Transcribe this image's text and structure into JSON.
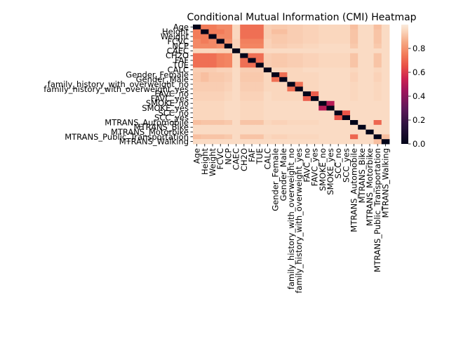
{
  "chart_data": {
    "type": "heatmap",
    "title": "Conditional Mutual Information (CMI) Heatmap",
    "xlabel": "",
    "ylabel": "",
    "labels": [
      "Age",
      "Height",
      "Weight",
      "FCVC",
      "NCP",
      "CAEC",
      "CH2O",
      "FAF",
      "TUE",
      "CALC",
      "Gender_Female",
      "Gender_Male",
      "family_history_with_overweight_no",
      "family_history_with_overweight_yes",
      "FAVC_no",
      "FAVC_yes",
      "SMOKE_no",
      "SMOKE_yes",
      "SCC_no",
      "SCC_yes",
      "MTRANS_Automobile",
      "MTRANS_Bike",
      "MTRANS_Motorbike",
      "MTRANS_Public_Transportation",
      "MTRANS_Walking"
    ],
    "values": [
      [
        0.0,
        0.75,
        0.75,
        0.78,
        0.78,
        0.95,
        0.72,
        0.72,
        0.72,
        0.93,
        0.92,
        0.92,
        0.93,
        0.93,
        0.94,
        0.94,
        0.95,
        0.95,
        0.95,
        0.95,
        0.9,
        0.96,
        0.96,
        0.9,
        0.96
      ],
      [
        0.75,
        0.0,
        0.75,
        0.75,
        0.78,
        0.95,
        0.72,
        0.72,
        0.72,
        0.93,
        0.9,
        0.9,
        0.93,
        0.93,
        0.94,
        0.94,
        0.95,
        0.95,
        0.95,
        0.95,
        0.91,
        0.96,
        0.96,
        0.91,
        0.96
      ],
      [
        0.75,
        0.75,
        0.0,
        0.78,
        0.78,
        0.95,
        0.72,
        0.72,
        0.72,
        0.93,
        0.92,
        0.92,
        0.93,
        0.93,
        0.94,
        0.94,
        0.95,
        0.95,
        0.95,
        0.95,
        0.91,
        0.96,
        0.96,
        0.91,
        0.96
      ],
      [
        0.78,
        0.75,
        0.78,
        0.0,
        0.8,
        0.94,
        0.76,
        0.76,
        0.76,
        0.94,
        0.92,
        0.92,
        0.93,
        0.93,
        0.94,
        0.94,
        0.95,
        0.95,
        0.95,
        0.95,
        0.91,
        0.96,
        0.96,
        0.91,
        0.96
      ],
      [
        0.78,
        0.78,
        0.78,
        0.8,
        0.0,
        0.94,
        0.77,
        0.77,
        0.77,
        0.94,
        0.93,
        0.93,
        0.94,
        0.94,
        0.95,
        0.95,
        0.96,
        0.96,
        0.96,
        0.96,
        0.92,
        0.96,
        0.96,
        0.92,
        0.96
      ],
      [
        0.95,
        0.95,
        0.95,
        0.94,
        0.94,
        0.0,
        0.95,
        0.95,
        0.95,
        0.96,
        0.96,
        0.96,
        0.96,
        0.96,
        0.96,
        0.96,
        0.96,
        0.96,
        0.96,
        0.96,
        0.96,
        0.96,
        0.96,
        0.96,
        0.96
      ],
      [
        0.72,
        0.72,
        0.72,
        0.76,
        0.77,
        0.95,
        0.0,
        0.72,
        0.72,
        0.93,
        0.92,
        0.92,
        0.93,
        0.93,
        0.94,
        0.94,
        0.95,
        0.95,
        0.95,
        0.95,
        0.91,
        0.96,
        0.96,
        0.91,
        0.96
      ],
      [
        0.72,
        0.72,
        0.72,
        0.76,
        0.77,
        0.95,
        0.72,
        0.0,
        0.72,
        0.93,
        0.92,
        0.92,
        0.93,
        0.93,
        0.94,
        0.94,
        0.95,
        0.95,
        0.95,
        0.95,
        0.91,
        0.96,
        0.96,
        0.91,
        0.96
      ],
      [
        0.72,
        0.72,
        0.72,
        0.76,
        0.77,
        0.95,
        0.72,
        0.72,
        0.0,
        0.93,
        0.92,
        0.92,
        0.93,
        0.93,
        0.94,
        0.94,
        0.95,
        0.95,
        0.95,
        0.95,
        0.91,
        0.96,
        0.96,
        0.91,
        0.96
      ],
      [
        0.93,
        0.93,
        0.93,
        0.94,
        0.94,
        0.96,
        0.93,
        0.93,
        0.93,
        0.0,
        0.95,
        0.95,
        0.95,
        0.95,
        0.96,
        0.96,
        0.96,
        0.96,
        0.96,
        0.96,
        0.95,
        0.96,
        0.96,
        0.95,
        0.96
      ],
      [
        0.92,
        0.9,
        0.92,
        0.92,
        0.93,
        0.96,
        0.92,
        0.92,
        0.92,
        0.95,
        0.0,
        0.72,
        0.95,
        0.95,
        0.95,
        0.95,
        0.96,
        0.96,
        0.96,
        0.96,
        0.94,
        0.96,
        0.96,
        0.94,
        0.96
      ],
      [
        0.92,
        0.9,
        0.92,
        0.92,
        0.93,
        0.96,
        0.92,
        0.92,
        0.92,
        0.95,
        0.72,
        0.0,
        0.95,
        0.95,
        0.95,
        0.95,
        0.96,
        0.96,
        0.96,
        0.96,
        0.94,
        0.96,
        0.96,
        0.94,
        0.96
      ],
      [
        0.93,
        0.93,
        0.93,
        0.93,
        0.94,
        0.96,
        0.93,
        0.93,
        0.93,
        0.95,
        0.95,
        0.95,
        0.0,
        0.72,
        0.95,
        0.95,
        0.96,
        0.96,
        0.96,
        0.96,
        0.95,
        0.96,
        0.96,
        0.95,
        0.96
      ],
      [
        0.93,
        0.93,
        0.93,
        0.93,
        0.94,
        0.96,
        0.93,
        0.93,
        0.93,
        0.95,
        0.95,
        0.95,
        0.72,
        0.0,
        0.95,
        0.95,
        0.96,
        0.96,
        0.96,
        0.96,
        0.95,
        0.96,
        0.96,
        0.95,
        0.96
      ],
      [
        0.94,
        0.94,
        0.94,
        0.94,
        0.95,
        0.96,
        0.94,
        0.94,
        0.94,
        0.96,
        0.95,
        0.95,
        0.95,
        0.95,
        0.0,
        0.68,
        0.96,
        0.96,
        0.96,
        0.96,
        0.95,
        0.96,
        0.96,
        0.95,
        0.96
      ],
      [
        0.94,
        0.94,
        0.94,
        0.94,
        0.95,
        0.96,
        0.94,
        0.94,
        0.94,
        0.96,
        0.95,
        0.95,
        0.95,
        0.95,
        0.68,
        0.0,
        0.96,
        0.96,
        0.96,
        0.96,
        0.95,
        0.96,
        0.96,
        0.95,
        0.96
      ],
      [
        0.95,
        0.95,
        0.95,
        0.95,
        0.96,
        0.96,
        0.95,
        0.95,
        0.95,
        0.96,
        0.96,
        0.96,
        0.96,
        0.96,
        0.96,
        0.96,
        0.0,
        0.5,
        0.96,
        0.96,
        0.96,
        0.96,
        0.96,
        0.96,
        0.96
      ],
      [
        0.95,
        0.95,
        0.95,
        0.95,
        0.96,
        0.96,
        0.95,
        0.95,
        0.95,
        0.96,
        0.96,
        0.96,
        0.96,
        0.96,
        0.96,
        0.96,
        0.5,
        0.0,
        0.96,
        0.96,
        0.96,
        0.96,
        0.96,
        0.96,
        0.96
      ],
      [
        0.95,
        0.95,
        0.95,
        0.95,
        0.96,
        0.96,
        0.95,
        0.95,
        0.95,
        0.96,
        0.96,
        0.96,
        0.96,
        0.96,
        0.96,
        0.96,
        0.96,
        0.96,
        0.0,
        0.66,
        0.96,
        0.96,
        0.96,
        0.96,
        0.96
      ],
      [
        0.95,
        0.95,
        0.95,
        0.95,
        0.96,
        0.96,
        0.95,
        0.95,
        0.95,
        0.96,
        0.96,
        0.96,
        0.96,
        0.96,
        0.96,
        0.96,
        0.96,
        0.96,
        0.66,
        0.0,
        0.96,
        0.96,
        0.96,
        0.96,
        0.96
      ],
      [
        0.9,
        0.91,
        0.91,
        0.91,
        0.92,
        0.96,
        0.91,
        0.91,
        0.91,
        0.95,
        0.94,
        0.94,
        0.95,
        0.95,
        0.95,
        0.95,
        0.96,
        0.96,
        0.96,
        0.96,
        0.0,
        0.96,
        0.96,
        0.7,
        0.96
      ],
      [
        0.96,
        0.96,
        0.96,
        0.96,
        0.96,
        0.96,
        0.96,
        0.96,
        0.96,
        0.96,
        0.96,
        0.96,
        0.96,
        0.96,
        0.96,
        0.96,
        0.96,
        0.96,
        0.96,
        0.96,
        0.96,
        0.0,
        0.96,
        0.96,
        0.96
      ],
      [
        0.96,
        0.96,
        0.96,
        0.96,
        0.96,
        0.96,
        0.96,
        0.96,
        0.96,
        0.96,
        0.96,
        0.96,
        0.96,
        0.96,
        0.96,
        0.96,
        0.96,
        0.96,
        0.96,
        0.96,
        0.96,
        0.96,
        0.0,
        0.96,
        0.96
      ],
      [
        0.9,
        0.91,
        0.91,
        0.91,
        0.92,
        0.96,
        0.91,
        0.91,
        0.91,
        0.95,
        0.94,
        0.94,
        0.95,
        0.95,
        0.95,
        0.95,
        0.96,
        0.96,
        0.96,
        0.96,
        0.7,
        0.96,
        0.96,
        0.0,
        0.9
      ],
      [
        0.96,
        0.96,
        0.96,
        0.96,
        0.96,
        0.96,
        0.96,
        0.96,
        0.96,
        0.96,
        0.96,
        0.96,
        0.96,
        0.96,
        0.96,
        0.96,
        0.96,
        0.96,
        0.96,
        0.96,
        0.96,
        0.96,
        0.96,
        0.9,
        0.0
      ]
    ],
    "vmin": 0.0,
    "vmax": 1.0,
    "colorbar_ticks": [
      "0.0",
      "0.2",
      "0.4",
      "0.6",
      "0.8"
    ],
    "colorbar_tick_values": [
      0.0,
      0.2,
      0.4,
      0.6,
      0.8
    ],
    "colormap": "rocket",
    "grid": false,
    "legend": "colorbar-right"
  }
}
